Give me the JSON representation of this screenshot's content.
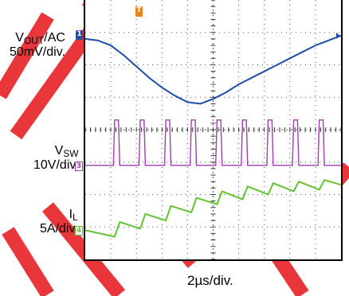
{
  "chart_data": {
    "type": "line",
    "title": "",
    "timebase": "2µs/div.",
    "divisions": {
      "x": 10,
      "y": 8
    },
    "series": [
      {
        "name": "VOUT/AC",
        "scale": "50mV/div.",
        "color": "#1f4ea8",
        "marker_symbol": "1",
        "x": [
          0,
          0.5,
          1,
          1.5,
          2,
          2.5,
          3,
          3.5,
          4,
          4.5,
          5,
          5.5,
          6,
          6.5,
          7,
          7.5,
          8,
          8.5,
          9,
          9.5,
          10
        ],
        "y": [
          -0.1,
          -0.15,
          -0.3,
          -0.6,
          -0.95,
          -1.3,
          -1.6,
          -1.85,
          -2.05,
          -2.1,
          -1.95,
          -1.75,
          -1.5,
          -1.3,
          -1.1,
          -0.9,
          -0.7,
          -0.5,
          -0.3,
          -0.15,
          0.0
        ]
      },
      {
        "name": "VSW",
        "scale": "10V/div.",
        "color": "#a13fb0",
        "marker_symbol": "3",
        "x": [
          0,
          1.1,
          1.15,
          1.3,
          1.35,
          2.1,
          2.15,
          2.3,
          2.35,
          3.1,
          3.15,
          3.3,
          3.35,
          4.1,
          4.15,
          4.3,
          4.35,
          5.1,
          5.15,
          5.3,
          5.35,
          6.1,
          6.15,
          6.3,
          6.35,
          7.1,
          7.15,
          7.3,
          7.35,
          8.1,
          8.15,
          8.3,
          8.35,
          9.1,
          9.15,
          9.3,
          9.35,
          10
        ],
        "y": [
          0,
          0,
          1.4,
          1.4,
          0,
          0,
          1.4,
          1.4,
          0,
          0,
          1.4,
          1.4,
          0,
          0,
          1.4,
          1.4,
          0,
          0,
          1.4,
          1.4,
          0,
          0,
          1.4,
          1.4,
          0,
          0,
          1.4,
          1.4,
          0,
          0,
          1.4,
          1.4,
          0,
          0,
          1.4,
          1.4,
          0,
          0
        ]
      },
      {
        "name": "IL",
        "scale": "5A/div.",
        "color": "#63c132",
        "marker_symbol": "4",
        "x": [
          0,
          1.15,
          1.35,
          2.15,
          2.35,
          3.15,
          3.35,
          4.15,
          4.35,
          5.15,
          5.35,
          6.15,
          6.35,
          7.15,
          7.35,
          8.15,
          8.35,
          9.15,
          9.35,
          10
        ],
        "y": [
          0,
          -0.2,
          0.25,
          0.05,
          0.5,
          0.3,
          0.75,
          0.55,
          1.0,
          0.8,
          1.2,
          0.95,
          1.35,
          1.1,
          1.45,
          1.2,
          1.5,
          1.25,
          1.55,
          1.4
        ]
      }
    ],
    "channel_labels": [
      {
        "main": "V",
        "sub": "OUT",
        "rest": "/AC",
        "scale": "50mV/div."
      },
      {
        "main": "V",
        "sub": "SW",
        "rest": "",
        "scale": "10V/div."
      },
      {
        "main": "I",
        "sub": "L",
        "rest": "",
        "scale": "5A/div."
      }
    ],
    "trigger_marker": "T",
    "watermark_color": "#e8363b",
    "grid": true,
    "legend_placement": "left"
  }
}
